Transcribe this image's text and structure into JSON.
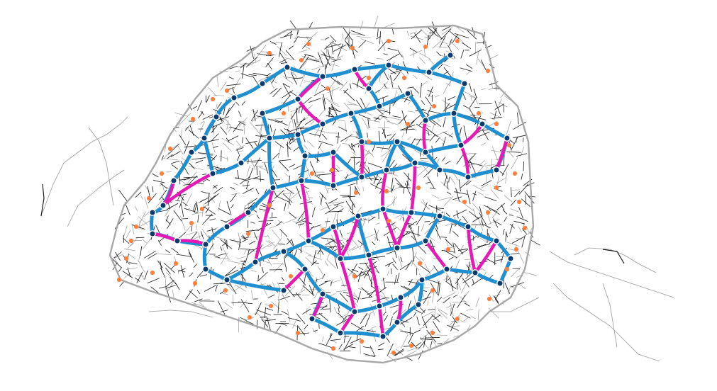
{
  "map": {
    "background": "#ffffff",
    "colors": {
      "street_dark": "#1a1a1a",
      "street_light": "#9a9a9a",
      "boundary_road": "#a8a8a8",
      "route_blue": "#1f8fd0",
      "route_magenta": "#e619b4",
      "node_fill": "#0b3a6e",
      "node_ring": "#ffffff",
      "poi_orange": "#ff7f3f"
    },
    "legend": null
  }
}
